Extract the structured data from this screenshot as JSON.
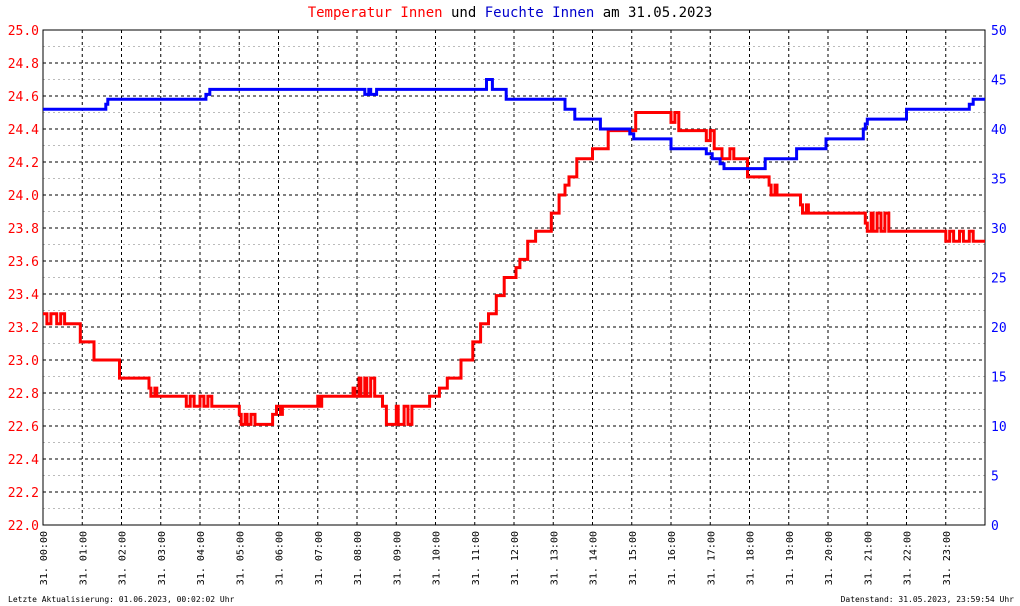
{
  "title": {
    "part1": "Temperatur Innen",
    "part2": "und",
    "part3": "Feuchte Innen",
    "part4": "am 31.05.2023"
  },
  "footer": {
    "left": "Letzte Aktualisierung: 01.06.2023, 00:02:02 Uhr",
    "right": "Datenstand: 31.05.2023, 23:59:54 Uhr"
  },
  "colors": {
    "temperature": "#ff0000",
    "humidity": "#0000ff",
    "grid_major": "#000000",
    "grid_minor": "#bbbbbb"
  },
  "chart_data": {
    "type": "line",
    "title": "Temperatur Innen und Feuchte Innen am 31.05.2023",
    "x_unit": "hours",
    "xlim": [
      0,
      24
    ],
    "x_tick_labels": [
      "31. 00:00",
      "31. 01:00",
      "31. 02:00",
      "31. 03:00",
      "31. 04:00",
      "31. 05:00",
      "31. 06:00",
      "31. 07:00",
      "31. 08:00",
      "31. 09:00",
      "31. 10:00",
      "31. 11:00",
      "31. 12:00",
      "31. 13:00",
      "31. 14:00",
      "31. 15:00",
      "31. 16:00",
      "31. 17:00",
      "31. 18:00",
      "31. 19:00",
      "31. 20:00",
      "31. 21:00",
      "31. 22:00",
      "31. 23:00"
    ],
    "y_left": {
      "lim": [
        22.0,
        25.0
      ],
      "ticks": [
        "22.0",
        "22.2",
        "22.4",
        "22.6",
        "22.8",
        "23.0",
        "23.2",
        "23.4",
        "23.6",
        "23.8",
        "24.0",
        "24.2",
        "24.4",
        "24.6",
        "24.8",
        "25.0"
      ],
      "color": "#ff0000"
    },
    "y_right": {
      "lim": [
        0,
        50
      ],
      "ticks": [
        "0",
        "5",
        "10",
        "15",
        "20",
        "25",
        "30",
        "35",
        "40",
        "45",
        "50"
      ],
      "color": "#0000ff"
    },
    "grid": true,
    "series": [
      {
        "name": "Temperatur Innen",
        "axis": "left",
        "color": "#ff0000",
        "style": "step",
        "points": [
          [
            0.0,
            23.28
          ],
          [
            0.1,
            23.22
          ],
          [
            0.2,
            23.28
          ],
          [
            0.35,
            23.22
          ],
          [
            0.45,
            23.28
          ],
          [
            0.55,
            23.22
          ],
          [
            0.95,
            23.11
          ],
          [
            1.3,
            23.0
          ],
          [
            1.95,
            22.89
          ],
          [
            2.7,
            22.83
          ],
          [
            2.75,
            22.78
          ],
          [
            2.85,
            22.83
          ],
          [
            2.9,
            22.78
          ],
          [
            3.65,
            22.72
          ],
          [
            3.75,
            22.78
          ],
          [
            3.85,
            22.72
          ],
          [
            4.0,
            22.78
          ],
          [
            4.1,
            22.72
          ],
          [
            4.2,
            22.78
          ],
          [
            4.3,
            22.72
          ],
          [
            5.0,
            22.67
          ],
          [
            5.05,
            22.61
          ],
          [
            5.15,
            22.67
          ],
          [
            5.2,
            22.61
          ],
          [
            5.3,
            22.67
          ],
          [
            5.4,
            22.61
          ],
          [
            5.85,
            22.67
          ],
          [
            5.95,
            22.72
          ],
          [
            6.05,
            22.67
          ],
          [
            6.1,
            22.72
          ],
          [
            7.0,
            22.78
          ],
          [
            7.05,
            22.72
          ],
          [
            7.1,
            22.78
          ],
          [
            7.9,
            22.83
          ],
          [
            7.95,
            22.78
          ],
          [
            8.05,
            22.89
          ],
          [
            8.1,
            22.78
          ],
          [
            8.2,
            22.89
          ],
          [
            8.25,
            22.78
          ],
          [
            8.35,
            22.89
          ],
          [
            8.45,
            22.78
          ],
          [
            8.65,
            22.72
          ],
          [
            8.75,
            22.61
          ],
          [
            9.0,
            22.72
          ],
          [
            9.05,
            22.61
          ],
          [
            9.2,
            22.72
          ],
          [
            9.3,
            22.61
          ],
          [
            9.4,
            22.72
          ],
          [
            9.85,
            22.78
          ],
          [
            10.1,
            22.83
          ],
          [
            10.3,
            22.89
          ],
          [
            10.65,
            23.0
          ],
          [
            10.95,
            23.11
          ],
          [
            11.15,
            23.22
          ],
          [
            11.35,
            23.28
          ],
          [
            11.55,
            23.39
          ],
          [
            11.75,
            23.5
          ],
          [
            12.05,
            23.56
          ],
          [
            12.15,
            23.61
          ],
          [
            12.35,
            23.72
          ],
          [
            12.55,
            23.78
          ],
          [
            12.95,
            23.89
          ],
          [
            13.15,
            24.0
          ],
          [
            13.3,
            24.06
          ],
          [
            13.4,
            24.11
          ],
          [
            13.6,
            24.22
          ],
          [
            14.0,
            24.28
          ],
          [
            14.4,
            24.39
          ],
          [
            15.1,
            24.5
          ],
          [
            16.0,
            24.44
          ],
          [
            16.1,
            24.5
          ],
          [
            16.2,
            24.39
          ],
          [
            16.9,
            24.33
          ],
          [
            17.0,
            24.39
          ],
          [
            17.1,
            24.28
          ],
          [
            17.3,
            24.22
          ],
          [
            17.5,
            24.28
          ],
          [
            17.6,
            24.22
          ],
          [
            17.95,
            24.11
          ],
          [
            18.5,
            24.06
          ],
          [
            18.55,
            24.0
          ],
          [
            18.65,
            24.06
          ],
          [
            18.7,
            24.0
          ],
          [
            19.3,
            23.94
          ],
          [
            19.35,
            23.89
          ],
          [
            19.45,
            23.94
          ],
          [
            19.5,
            23.89
          ],
          [
            20.95,
            23.83
          ],
          [
            21.0,
            23.78
          ],
          [
            21.1,
            23.89
          ],
          [
            21.15,
            23.78
          ],
          [
            21.25,
            23.89
          ],
          [
            21.35,
            23.78
          ],
          [
            21.45,
            23.89
          ],
          [
            21.55,
            23.78
          ],
          [
            23.0,
            23.72
          ],
          [
            23.1,
            23.78
          ],
          [
            23.2,
            23.72
          ],
          [
            23.35,
            23.78
          ],
          [
            23.45,
            23.72
          ],
          [
            23.6,
            23.78
          ],
          [
            23.7,
            23.72
          ],
          [
            24.0,
            23.72
          ]
        ]
      },
      {
        "name": "Feuchte Innen",
        "axis": "right",
        "color": "#0000ff",
        "style": "step",
        "points": [
          [
            0.0,
            42
          ],
          [
            1.6,
            42.5
          ],
          [
            1.65,
            43
          ],
          [
            3.8,
            43
          ],
          [
            4.15,
            43.5
          ],
          [
            4.25,
            44
          ],
          [
            8.2,
            43.5
          ],
          [
            8.3,
            44
          ],
          [
            8.35,
            43.5
          ],
          [
            8.5,
            44
          ],
          [
            11.3,
            45
          ],
          [
            11.45,
            44
          ],
          [
            11.8,
            43
          ],
          [
            13.3,
            42
          ],
          [
            13.55,
            41
          ],
          [
            14.2,
            40
          ],
          [
            14.95,
            39.5
          ],
          [
            15.05,
            39
          ],
          [
            16.0,
            38
          ],
          [
            16.9,
            37.5
          ],
          [
            17.05,
            37
          ],
          [
            17.25,
            36.5
          ],
          [
            17.35,
            36
          ],
          [
            18.4,
            37
          ],
          [
            19.2,
            38
          ],
          [
            19.95,
            39
          ],
          [
            20.9,
            40
          ],
          [
            20.95,
            40.5
          ],
          [
            21.0,
            41
          ],
          [
            22.0,
            42
          ],
          [
            23.6,
            42.5
          ],
          [
            23.7,
            43
          ],
          [
            24.0,
            43
          ]
        ]
      }
    ]
  }
}
